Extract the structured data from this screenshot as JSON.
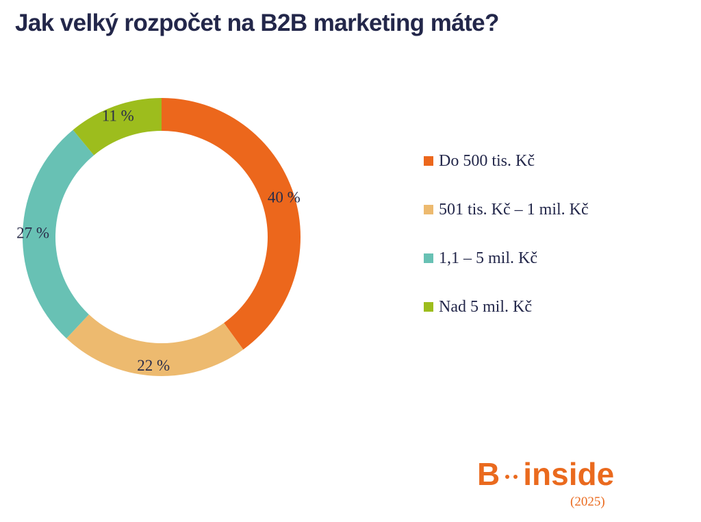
{
  "header": {
    "title": "Jak velký rozpočet na B2B marketing máte?"
  },
  "chart_data": {
    "type": "pie",
    "style": "donut",
    "categories": [
      "Do 500 tis. Kč",
      "501 tis. Kč – 1 mil. Kč",
      "1,1 – 5 mil. Kč",
      "Nad 5 mil. Kč"
    ],
    "values": [
      40,
      22,
      27,
      11
    ],
    "data_labels": [
      "40 %",
      "22 %",
      "27 %",
      "11 %"
    ],
    "colors": [
      "#ec671c",
      "#edba6f",
      "#68c1b4",
      "#9dbd1d"
    ],
    "legend_placement": "right",
    "title": "Jak velký rozpočet na B2B marketing máte?"
  },
  "brand": {
    "letter": "B",
    "word": "inside",
    "year": "(2025)",
    "color": "#ea6a1e"
  }
}
